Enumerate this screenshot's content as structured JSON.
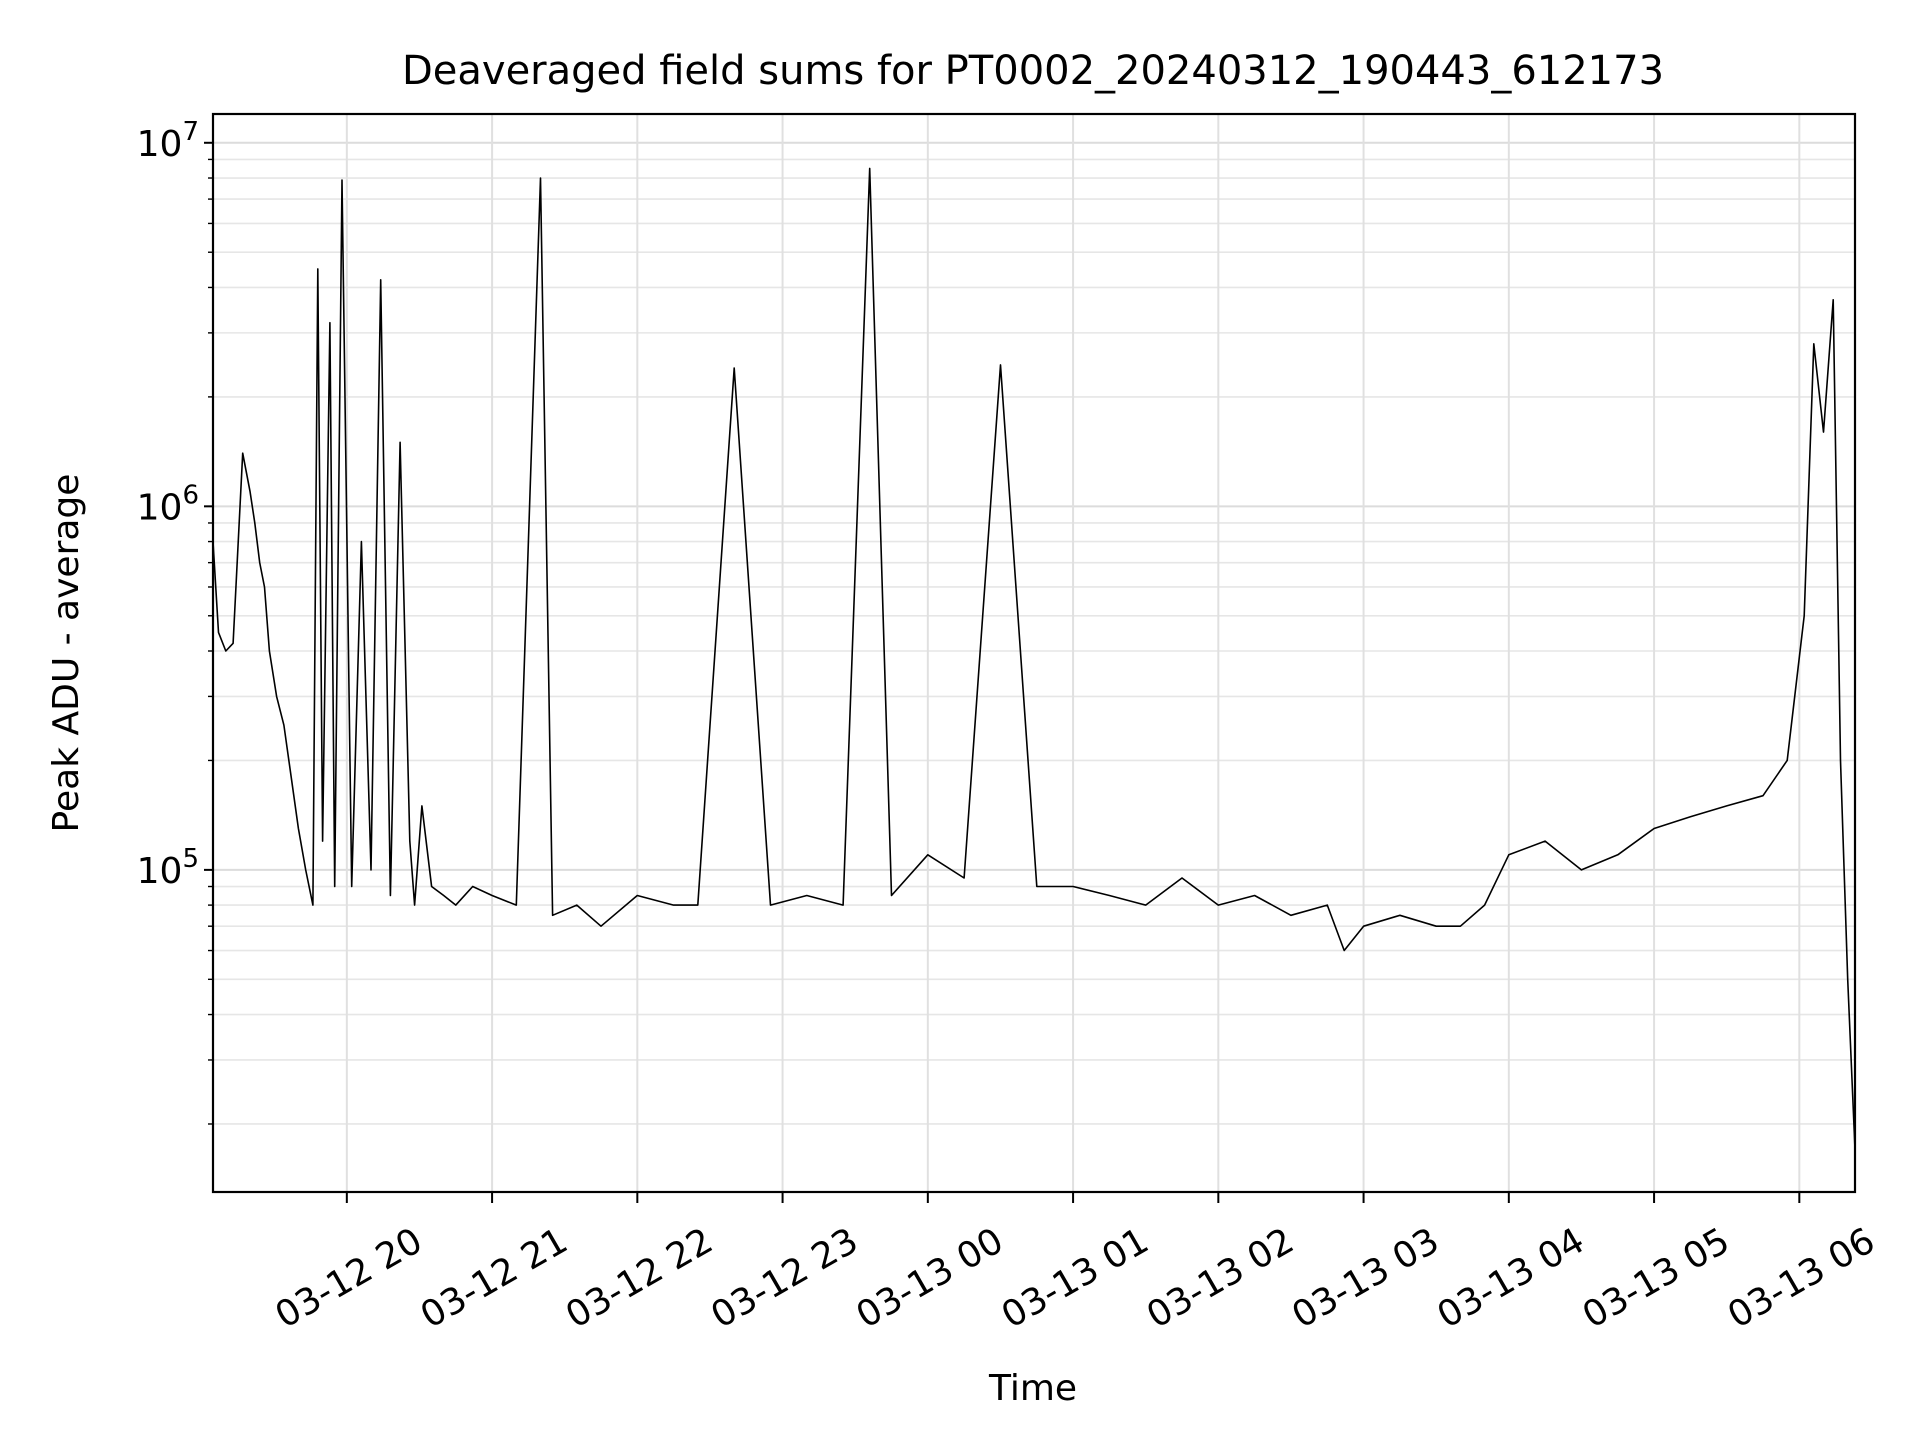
{
  "chart_data": {
    "type": "line",
    "title": "Deaveraged field sums for PT0002_20240312_190443_612173",
    "xlabel": "Time",
    "ylabel": "Peak ADU - average",
    "yscale": "log",
    "ylim": [
      13000,
      12000000
    ],
    "xlim": [
      "2024-03-12 19:04:43",
      "2024-03-13 06:23:00"
    ],
    "grid": true,
    "line_color": "#000000",
    "x_ticks": [
      {
        "label": "03-12 20",
        "t": "2024-03-12 20:00"
      },
      {
        "label": "03-12 21",
        "t": "2024-03-12 21:00"
      },
      {
        "label": "03-12 22",
        "t": "2024-03-12 22:00"
      },
      {
        "label": "03-12 23",
        "t": "2024-03-12 23:00"
      },
      {
        "label": "03-13 00",
        "t": "2024-03-13 00:00"
      },
      {
        "label": "03-13 01",
        "t": "2024-03-13 01:00"
      },
      {
        "label": "03-13 02",
        "t": "2024-03-13 02:00"
      },
      {
        "label": "03-13 03",
        "t": "2024-03-13 03:00"
      },
      {
        "label": "03-13 04",
        "t": "2024-03-13 04:00"
      },
      {
        "label": "03-13 05",
        "t": "2024-03-13 05:00"
      },
      {
        "label": "03-13 06",
        "t": "2024-03-13 06:00"
      }
    ],
    "y_ticks": [
      {
        "base": "10",
        "exp": "5",
        "value": 100000
      },
      {
        "base": "10",
        "exp": "6",
        "value": 1000000
      },
      {
        "base": "10",
        "exp": "7",
        "value": 10000000
      }
    ],
    "series": [
      {
        "x": [
          "2024-03-12 19:04:43",
          "2024-03-12 19:07",
          "2024-03-12 19:10",
          "2024-03-12 19:13",
          "2024-03-12 19:17",
          "2024-03-12 19:20",
          "2024-03-12 19:22",
          "2024-03-12 19:24",
          "2024-03-12 19:26",
          "2024-03-12 19:28",
          "2024-03-12 19:31",
          "2024-03-12 19:34",
          "2024-03-12 19:37",
          "2024-03-12 19:40",
          "2024-03-12 19:43",
          "2024-03-12 19:46",
          "2024-03-12 19:48",
          "2024-03-12 19:50",
          "2024-03-12 19:53",
          "2024-03-12 19:55",
          "2024-03-12 19:58",
          "2024-03-12 20:02",
          "2024-03-12 20:06",
          "2024-03-12 20:10",
          "2024-03-12 20:14",
          "2024-03-12 20:18",
          "2024-03-12 20:22",
          "2024-03-12 20:26",
          "2024-03-12 20:28",
          "2024-03-12 20:31",
          "2024-03-12 20:35",
          "2024-03-12 20:40",
          "2024-03-12 20:45",
          "2024-03-12 20:52",
          "2024-03-12 21:00",
          "2024-03-12 21:10",
          "2024-03-12 21:20",
          "2024-03-12 21:25",
          "2024-03-12 21:35",
          "2024-03-12 21:45",
          "2024-03-12 22:00",
          "2024-03-12 22:15",
          "2024-03-12 22:25",
          "2024-03-12 22:40",
          "2024-03-12 22:55",
          "2024-03-12 23:10",
          "2024-03-12 23:25",
          "2024-03-12 23:36",
          "2024-03-12 23:45",
          "2024-03-13 00:00",
          "2024-03-13 00:15",
          "2024-03-13 00:30",
          "2024-03-13 00:45",
          "2024-03-13 01:00",
          "2024-03-13 01:15",
          "2024-03-13 01:30",
          "2024-03-13 01:45",
          "2024-03-13 02:00",
          "2024-03-13 02:15",
          "2024-03-13 02:30",
          "2024-03-13 02:45",
          "2024-03-13 02:52",
          "2024-03-13 03:00",
          "2024-03-13 03:15",
          "2024-03-13 03:30",
          "2024-03-13 03:40",
          "2024-03-13 03:50",
          "2024-03-13 04:00",
          "2024-03-13 04:15",
          "2024-03-13 04:30",
          "2024-03-13 04:45",
          "2024-03-13 05:00",
          "2024-03-13 05:15",
          "2024-03-13 05:30",
          "2024-03-13 05:45",
          "2024-03-13 05:55",
          "2024-03-13 06:02",
          "2024-03-13 06:06",
          "2024-03-13 06:10",
          "2024-03-13 06:14",
          "2024-03-13 06:17",
          "2024-03-13 06:20",
          "2024-03-13 06:23"
        ],
        "y": [
          800000,
          450000,
          400000,
          420000,
          1400000,
          1100000,
          900000,
          700000,
          600000,
          400000,
          300000,
          250000,
          180000,
          130000,
          100000,
          80000,
          4500000,
          120000,
          3200000,
          90000,
          7900000,
          90000,
          800000,
          100000,
          4200000,
          85000,
          1500000,
          120000,
          80000,
          150000,
          90000,
          85000,
          80000,
          90000,
          85000,
          80000,
          8000000,
          75000,
          80000,
          70000,
          85000,
          80000,
          80000,
          2400000,
          80000,
          85000,
          80000,
          8500000,
          85000,
          110000,
          95000,
          2450000,
          90000,
          90000,
          85000,
          80000,
          95000,
          80000,
          85000,
          75000,
          80000,
          60000,
          70000,
          75000,
          70000,
          70000,
          80000,
          110000,
          120000,
          100000,
          110000,
          130000,
          140000,
          150000,
          160000,
          200000,
          500000,
          2800000,
          1600000,
          3700000,
          200000,
          50000,
          17000
        ]
      }
    ]
  }
}
